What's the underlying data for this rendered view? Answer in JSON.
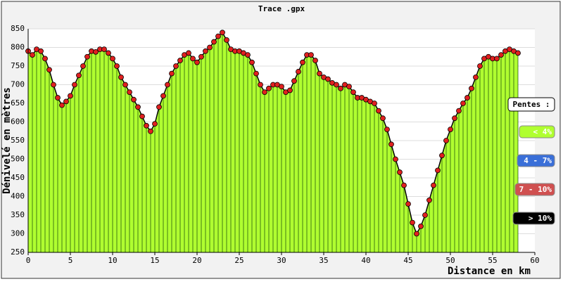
{
  "chart_data": {
    "type": "area",
    "title": "Trace .gpx",
    "x_label": "Distance en km",
    "y_label": "Dénivelé en mètres",
    "xlim": [
      0,
      60
    ],
    "xticks": [
      0,
      5,
      10,
      15,
      20,
      25,
      30,
      35,
      40,
      45,
      50,
      55,
      60
    ],
    "ylim": [
      250,
      850
    ],
    "yticks": [
      250,
      300,
      350,
      400,
      450,
      500,
      550,
      600,
      650,
      700,
      750,
      800,
      850
    ],
    "grid": true,
    "fill_color": "#b0ff30",
    "line_color": "#2a5a10",
    "marker_color": "#e02020",
    "x": [
      0,
      0.5,
      1,
      1.5,
      2,
      2.5,
      3,
      3.5,
      4,
      4.5,
      5,
      5.5,
      6,
      6.5,
      7,
      7.5,
      8,
      8.5,
      9,
      9.5,
      10,
      10.5,
      11,
      11.5,
      12,
      12.5,
      13,
      13.5,
      14,
      14.5,
      15,
      15.5,
      16,
      16.5,
      17,
      17.5,
      18,
      18.5,
      19,
      19.5,
      20,
      20.5,
      21,
      21.5,
      22,
      22.5,
      23,
      23.5,
      24,
      24.5,
      25,
      25.5,
      26,
      26.5,
      27,
      27.5,
      28,
      28.5,
      29,
      29.5,
      30,
      30.5,
      31,
      31.5,
      32,
      32.5,
      33,
      33.5,
      34,
      34.5,
      35,
      35.5,
      36,
      36.5,
      37,
      37.5,
      38,
      38.5,
      39,
      39.5,
      40,
      40.5,
      41,
      41.5,
      42,
      42.5,
      43,
      43.5,
      44,
      44.5,
      45,
      45.5,
      46,
      46.5,
      47,
      47.5,
      48,
      48.5,
      49,
      49.5,
      50,
      50.5,
      51,
      51.5,
      52,
      52.5,
      53,
      53.5,
      54,
      54.5,
      55,
      55.5,
      56,
      56.5,
      57,
      57.5,
      58
    ],
    "values": [
      790,
      780,
      795,
      790,
      770,
      740,
      700,
      665,
      645,
      655,
      670,
      700,
      725,
      750,
      775,
      790,
      788,
      795,
      795,
      785,
      770,
      750,
      720,
      700,
      680,
      660,
      640,
      615,
      590,
      575,
      595,
      640,
      670,
      700,
      730,
      750,
      765,
      780,
      785,
      770,
      760,
      775,
      790,
      800,
      815,
      830,
      840,
      820,
      795,
      790,
      790,
      785,
      780,
      760,
      730,
      700,
      680,
      690,
      700,
      700,
      695,
      680,
      685,
      710,
      735,
      760,
      780,
      780,
      765,
      730,
      720,
      715,
      705,
      700,
      690,
      700,
      695,
      680,
      665,
      665,
      660,
      655,
      650,
      630,
      610,
      580,
      540,
      500,
      465,
      430,
      380,
      330,
      300,
      320,
      350,
      390,
      430,
      470,
      510,
      550,
      580,
      610,
      630,
      650,
      665,
      690,
      720,
      750,
      770,
      775,
      770,
      770,
      780,
      790,
      795,
      790,
      785
    ],
    "legend": {
      "title": "Pentes :",
      "items": [
        {
          "label": "< 4%",
          "color": "#b0ff30",
          "text_color": "#ffffff"
        },
        {
          "label": "4 - 7%",
          "color": "#3a6fd8",
          "text_color": "#ffffff"
        },
        {
          "label": "7 - 10%",
          "color": "#d05050",
          "text_color": "#ffffff"
        },
        {
          "label": "> 10%",
          "color": "#000000",
          "text_color": "#ffffff"
        }
      ]
    }
  }
}
